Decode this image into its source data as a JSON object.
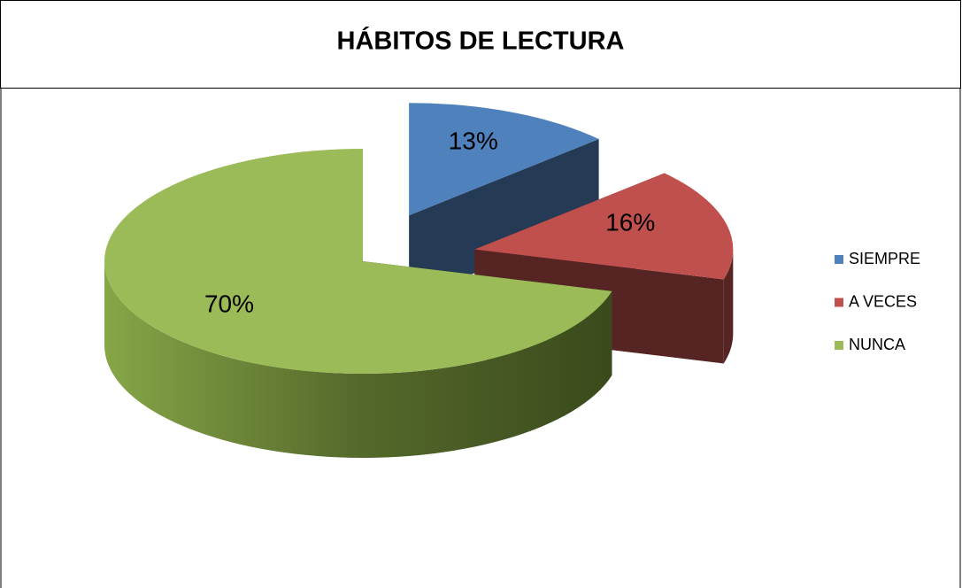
{
  "chart_data": {
    "type": "pie",
    "title": "HÁBITOS DE LECTURA",
    "categories": [
      "SIEMPRE",
      "A VECES",
      "NUNCA"
    ],
    "values": [
      13,
      16,
      70
    ],
    "value_labels": [
      "13%",
      "16%",
      "70%"
    ],
    "colors": [
      "#4f81bd",
      "#c0504d",
      "#9bbb59"
    ],
    "legend": "right"
  }
}
